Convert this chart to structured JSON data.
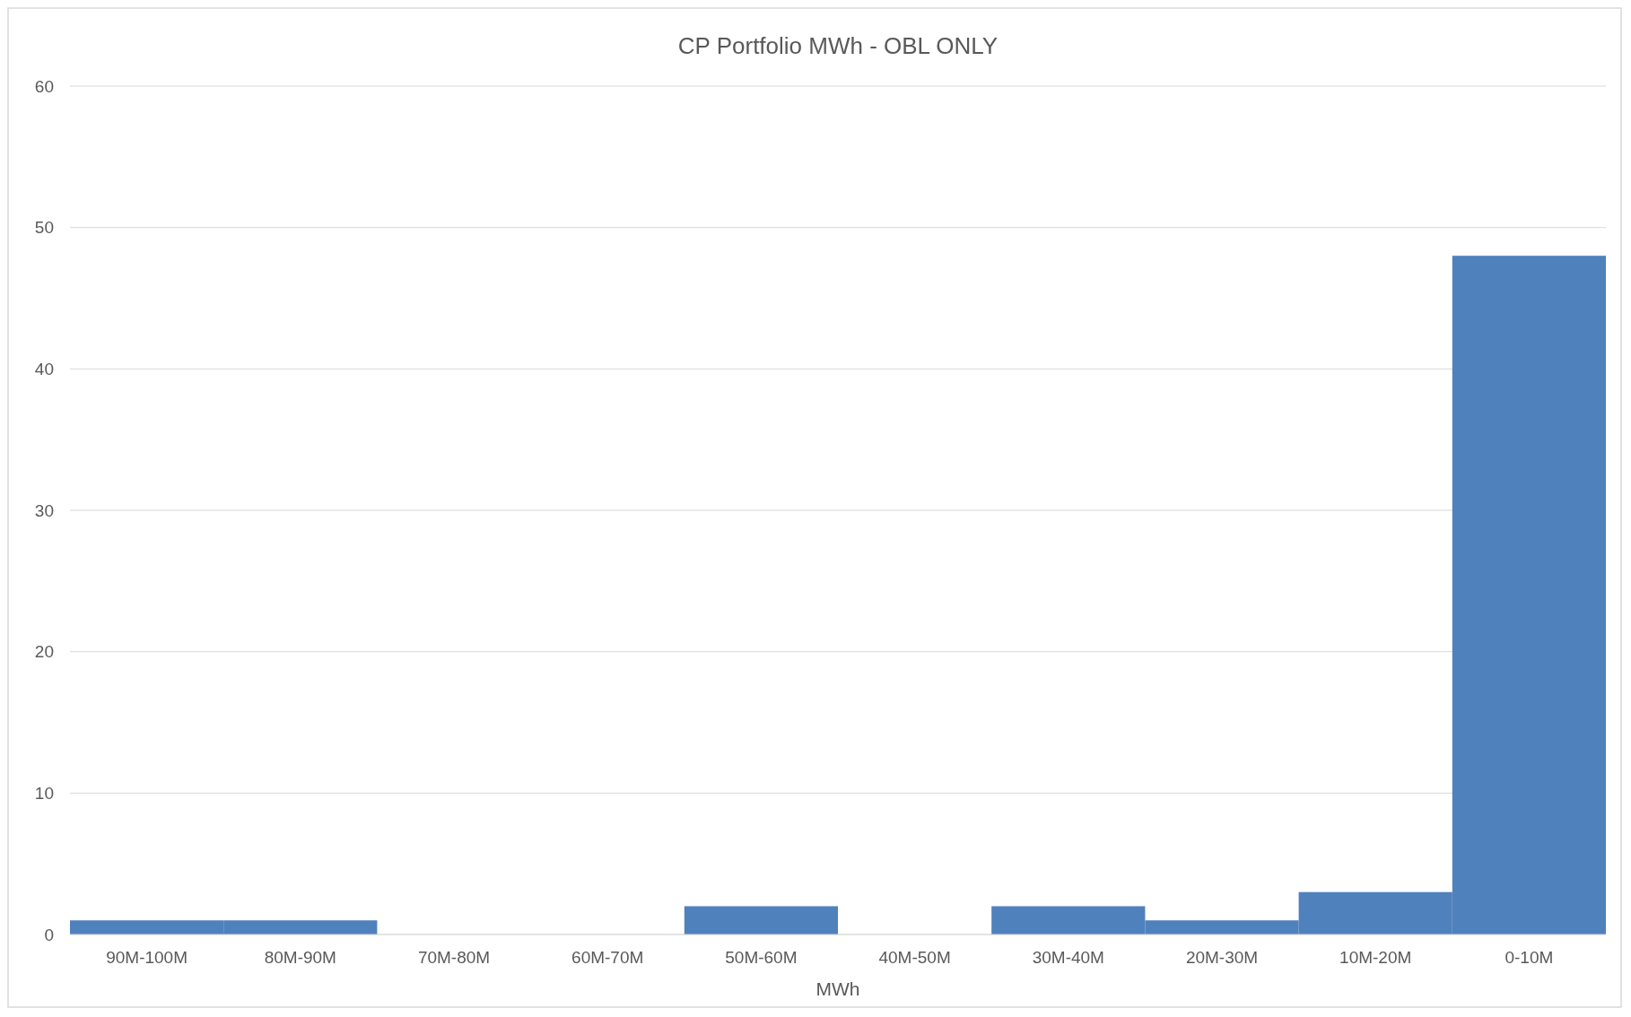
{
  "chart_data": {
    "type": "bar",
    "title": "CP Portfolio MWh - OBL ONLY",
    "xlabel": "MWh",
    "categories": [
      "90M-100M",
      "80M-90M",
      "70M-80M",
      "60M-70M",
      "50M-60M",
      "40M-50M",
      "30M-40M",
      "20M-30M",
      "10M-20M",
      "0-10M"
    ],
    "values": [
      1,
      1,
      0,
      0,
      2,
      0,
      2,
      1,
      3,
      48
    ],
    "color": "#4f81bd",
    "ylim": [
      0,
      60
    ],
    "yticks": [
      0,
      10,
      20,
      30,
      40,
      50,
      60
    ],
    "grid": "y"
  }
}
